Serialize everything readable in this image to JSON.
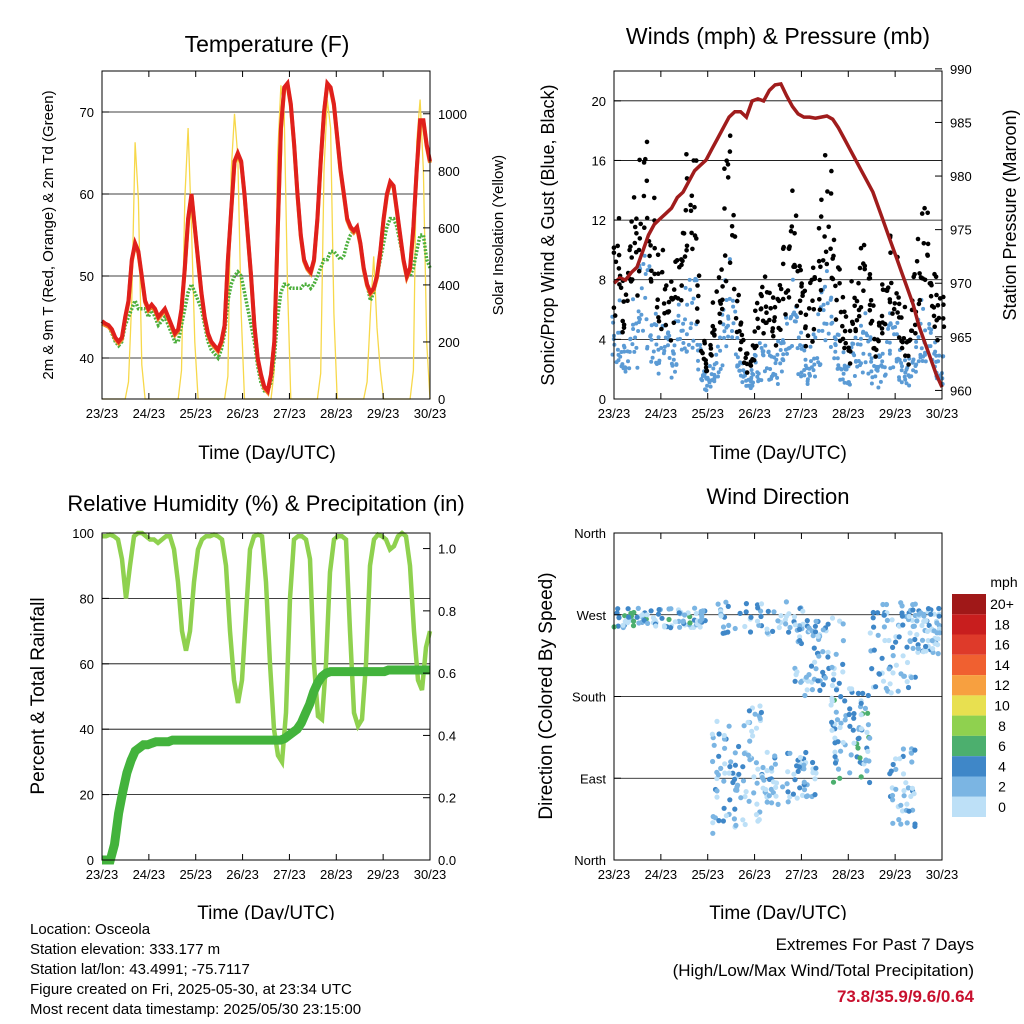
{
  "chart_data": [
    {
      "type": "line",
      "title": "Temperature (F)",
      "xlabel": "Time (Day/UTC)",
      "ylabel": "2m & 9m T (Red, Orange) & 2m Td (Green)",
      "y2label": "Solar Insolation (Yellow)",
      "x_ticks": [
        "23/23",
        "24/23",
        "25/23",
        "26/23",
        "27/23",
        "28/23",
        "29/23",
        "30/23"
      ],
      "ylim": [
        35,
        75
      ],
      "y_ticks": [
        40,
        50,
        60,
        70
      ],
      "y2lim": [
        0,
        1150
      ],
      "y2_ticks": [
        0,
        200,
        400,
        600,
        800,
        1000
      ],
      "grid": true,
      "colors": {
        "t2m": "#e0201c",
        "t9m": "#f28c28",
        "td": "#4caf3c",
        "solar": "#f7d84a"
      },
      "series": [
        {
          "values": [
            44.5,
            44.2,
            44,
            43.5,
            42.5,
            42,
            42.5,
            45,
            47,
            52,
            54,
            53,
            50,
            47,
            46,
            46.5,
            46,
            45,
            45.5,
            46,
            45,
            44,
            43,
            43.5,
            46,
            51,
            57,
            60,
            56,
            52,
            48,
            45,
            43,
            42,
            41.5,
            41,
            42,
            44,
            52,
            58,
            64,
            65,
            64,
            60,
            55,
            50,
            44,
            40,
            38,
            36.5,
            36,
            38,
            42,
            55,
            68,
            73,
            73.5,
            71,
            66,
            60,
            55,
            52,
            51,
            50.5,
            52,
            57,
            64,
            70,
            73.5,
            73,
            71,
            67,
            63,
            60,
            57,
            56,
            55.5,
            56,
            54,
            51,
            49,
            48,
            48.5,
            50,
            53,
            57,
            60,
            61.5,
            61,
            58,
            55,
            52,
            50,
            51,
            56,
            63,
            69,
            69,
            66,
            64
          ]
        },
        {
          "values": [
            44.2,
            44,
            43.8,
            43.3,
            42.3,
            41.8,
            42.3,
            44.8,
            46.8,
            51.8,
            53.8,
            52.8,
            49.8,
            46.8,
            45.8,
            46.3,
            45.8,
            44.8,
            45.3,
            45.8,
            44.8,
            43.8,
            42.8,
            43.3,
            45.8,
            50.8,
            56.8,
            59.8,
            55.8,
            51.8,
            47.8,
            44.8,
            42.8,
            41.8,
            41.3,
            40.8,
            41.8,
            43.8,
            51.8,
            57.8,
            63.8,
            64.8,
            63.8,
            59.8,
            54.8,
            49.8,
            43.8,
            39.8,
            37.8,
            36.3,
            35.8,
            37.8,
            41.8,
            54.8,
            67.8,
            72.8,
            73.3,
            70.8,
            65.8,
            59.8,
            54.8,
            51.8,
            50.8,
            50.3,
            51.8,
            56.8,
            63.8,
            69.8,
            73.3,
            72.8,
            70.8,
            66.8,
            62.8,
            59.8,
            56.8,
            55.8,
            55.3,
            55.8,
            53.8,
            50.8,
            48.8,
            47.8,
            48.3,
            49.8,
            52.8,
            56.8,
            59.8,
            61.3,
            60.8,
            57.8,
            54.8,
            51.8,
            49.8,
            50.8,
            55.8,
            62.8,
            68.8,
            68.8,
            65.8,
            63.8
          ]
        },
        {
          "values": [
            44.5,
            44,
            44,
            43,
            42,
            41.5,
            42,
            44,
            45,
            46,
            47,
            46,
            46,
            46,
            45,
            46,
            45,
            44,
            44.5,
            45,
            44,
            43,
            42,
            42,
            44,
            46,
            48,
            49,
            48,
            47,
            46,
            44,
            42,
            41,
            40.5,
            40,
            41,
            43,
            47,
            49,
            50,
            50.5,
            50,
            48,
            46,
            44,
            42,
            39,
            37,
            36,
            36,
            37,
            40,
            45,
            48,
            49,
            49,
            48.5,
            48.5,
            48.5,
            48.5,
            49,
            49,
            48.5,
            49,
            50,
            51,
            52,
            52,
            53,
            53,
            52.5,
            52,
            52.5,
            54,
            55,
            55.5,
            56,
            54,
            51,
            49,
            47,
            48,
            50,
            52,
            54,
            56,
            57,
            57,
            56,
            54,
            52,
            50,
            50,
            51,
            53,
            55,
            55,
            52,
            51
          ]
        },
        {
          "values": [
            0,
            0,
            0,
            0,
            0,
            0,
            0,
            0,
            60,
            350,
            900,
            700,
            120,
            0,
            0,
            0,
            0,
            0,
            0,
            0,
            0,
            0,
            0,
            0,
            100,
            700,
            950,
            600,
            200,
            0,
            0,
            0,
            0,
            0,
            0,
            0,
            0,
            0,
            80,
            800,
            1000,
            850,
            300,
            0,
            0,
            0,
            0,
            0,
            0,
            0,
            0,
            0,
            100,
            850,
            1100,
            1000,
            400,
            0,
            0,
            0,
            0,
            0,
            0,
            0,
            0,
            0,
            90,
            800,
            1050,
            950,
            300,
            0,
            0,
            0,
            0,
            0,
            0,
            0,
            0,
            0,
            60,
            300,
            500,
            250,
            100,
            0,
            0,
            0,
            0,
            0,
            0,
            0,
            0,
            0,
            100,
            900,
            1050,
            800,
            200,
            0
          ]
        }
      ]
    },
    {
      "type": "scatter",
      "title": "Winds (mph) & Pressure (mb)",
      "xlabel": "Time (Day/UTC)",
      "ylabel": "Sonic/Prop Wind & Gust (Blue, Black)",
      "y2label": "Station Pressure (Maroon)",
      "x_ticks": [
        "23/23",
        "24/23",
        "25/23",
        "26/23",
        "27/23",
        "28/23",
        "29/23",
        "30/23"
      ],
      "ylim": [
        0,
        22
      ],
      "y_ticks": [
        0,
        4,
        8,
        12,
        16,
        20
      ],
      "y2lim": [
        959.2,
        989.8
      ],
      "y2_ticks": [
        960,
        965,
        970,
        975,
        980,
        985,
        990
      ],
      "grid": true,
      "colors": {
        "wind": "#5b9bd5",
        "gust": "#000000",
        "pressure": "#a01c1c"
      },
      "series": [
        {
          "values": [
            4,
            4.5,
            3,
            2.5,
            3.5,
            5,
            4,
            6,
            7,
            6.5,
            5,
            4,
            3,
            3.5,
            3,
            2.5,
            3.5,
            4.5,
            5,
            6,
            6.5,
            5.5,
            3,
            1.5,
            1,
            1.5,
            2,
            3,
            4,
            5.5,
            6.5,
            5,
            3,
            2,
            1.5,
            1,
            1.5,
            2,
            2.5,
            3,
            2.5,
            2,
            2,
            3,
            4,
            5,
            5.5,
            4.5,
            3,
            2.5,
            2,
            2.5,
            3,
            4,
            5,
            6,
            5.5,
            4,
            3,
            2.5,
            2,
            1.5,
            2.5,
            3,
            3.5,
            4,
            3,
            2,
            1.5,
            2,
            3,
            3.5,
            4,
            3.5,
            2.5,
            2,
            1.5,
            2,
            3,
            4,
            5,
            4.5,
            3.5,
            3,
            2.5,
            2
          ]
        },
        {
          "values": [
            10,
            11,
            8,
            7,
            9,
            13,
            11,
            15,
            17,
            16,
            12,
            10,
            8,
            9,
            8,
            7,
            9,
            12,
            13,
            15,
            16,
            14,
            8,
            4,
            3,
            4,
            6,
            8,
            10,
            14,
            16,
            12,
            8,
            6,
            4,
            3,
            4,
            6,
            7,
            8,
            7,
            6,
            6,
            8,
            10,
            12,
            13,
            11,
            8,
            7,
            6,
            7,
            8,
            10,
            12,
            15,
            14,
            10,
            8,
            7,
            6,
            4,
            7,
            8,
            9,
            10,
            8,
            6,
            4,
            6,
            8,
            9,
            10,
            9,
            7,
            6,
            4,
            6,
            8,
            10,
            12,
            11,
            9,
            8,
            7,
            6
          ]
        },
        {
          "values": [
            970,
            970.5,
            970.3,
            971,
            971.5,
            973,
            974.5,
            975.5,
            976,
            976.5,
            977,
            978,
            978.5,
            979.5,
            980.5,
            981,
            981.5,
            982.5,
            983.5,
            984.5,
            985.5,
            986,
            986,
            985.5,
            987,
            987.2,
            987,
            988,
            988.5,
            988.6,
            987.5,
            986.5,
            985.8,
            985.5,
            985.5,
            985.4,
            985.5,
            985.6,
            985.3,
            984.5,
            983.5,
            982.5,
            981.5,
            980.5,
            979.5,
            978.5,
            977,
            975.5,
            974,
            972.5,
            971,
            969.5,
            968,
            966,
            964.5,
            963,
            961.5,
            960.3
          ]
        }
      ]
    },
    {
      "type": "line",
      "title": "Relative Humidity (%) & Precipitation (in)",
      "xlabel": "Time (Day/UTC)",
      "ylabel": "Percent & Total Rainfall",
      "x_ticks": [
        "23/23",
        "24/23",
        "25/23",
        "26/23",
        "27/23",
        "28/23",
        "29/23",
        "30/23"
      ],
      "ylim": [
        0,
        100
      ],
      "y_ticks": [
        0,
        20,
        40,
        60,
        80,
        100
      ],
      "y2lim": [
        0,
        1.0
      ],
      "y2_ticks": [
        "0.0",
        "0.2",
        "0.4",
        "0.6",
        "0.8",
        "1.0"
      ],
      "grid": true,
      "colors": {
        "rh": "#8fd14f",
        "precip": "#43b33c"
      },
      "series": [
        {
          "values": [
            99,
            99,
            99.5,
            99,
            98,
            92,
            80,
            90,
            99,
            100,
            100,
            99,
            98,
            98,
            97,
            98,
            99,
            99,
            95,
            85,
            70,
            64,
            70,
            85,
            95,
            98,
            99,
            99,
            99.5,
            99,
            98,
            90,
            70,
            55,
            48,
            55,
            75,
            95,
            99,
            99.5,
            99,
            85,
            60,
            40,
            32,
            30,
            45,
            80,
            98,
            99,
            99,
            98,
            92,
            60,
            44,
            43,
            60,
            88,
            98,
            99,
            99,
            98,
            70,
            45,
            41,
            43,
            60,
            90,
            98,
            99.5,
            99,
            98,
            95,
            96,
            99,
            100,
            99,
            90,
            70,
            55,
            52,
            65,
            70
          ]
        },
        {
          "values": [
            0,
            0,
            0,
            0.05,
            0.15,
            0.22,
            0.28,
            0.32,
            0.35,
            0.36,
            0.37,
            0.37,
            0.375,
            0.38,
            0.38,
            0.38,
            0.38,
            0.385,
            0.385,
            0.385,
            0.385,
            0.385,
            0.385,
            0.385,
            0.385,
            0.385,
            0.385,
            0.385,
            0.385,
            0.385,
            0.385,
            0.385,
            0.385,
            0.385,
            0.385,
            0.385,
            0.385,
            0.385,
            0.385,
            0.385,
            0.385,
            0.385,
            0.385,
            0.385,
            0.39,
            0.4,
            0.41,
            0.42,
            0.44,
            0.47,
            0.5,
            0.54,
            0.57,
            0.59,
            0.6,
            0.605,
            0.605,
            0.605,
            0.605,
            0.605,
            0.605,
            0.605,
            0.605,
            0.605,
            0.605,
            0.605,
            0.605,
            0.605,
            0.605,
            0.61,
            0.61,
            0.61,
            0.61,
            0.61,
            0.61,
            0.61,
            0.61,
            0.61,
            0.61,
            0.61
          ]
        }
      ]
    },
    {
      "type": "scatter",
      "title": "Wind Direction",
      "xlabel": "Time (Day/UTC)",
      "ylabel": "Direction (Colored By Speed)",
      "x_ticks": [
        "23/23",
        "24/23",
        "25/23",
        "26/23",
        "27/23",
        "28/23",
        "29/23",
        "30/23"
      ],
      "y_ticks": [
        "North",
        "West",
        "South",
        "East",
        "North"
      ],
      "grid": true,
      "colorbar": {
        "unit": "mph",
        "labels": [
          "20+",
          "18",
          "16",
          "14",
          "12",
          "10",
          "8",
          "6",
          "4",
          "2",
          "0"
        ],
        "colors": [
          "#a01818",
          "#c81e1e",
          "#de3a2a",
          "#f06030",
          "#f7a040",
          "#e8e050",
          "#8fd14f",
          "#4caf6e",
          "#3f87c8",
          "#7bb5e3",
          "#bde0f7"
        ]
      }
    }
  ],
  "info": {
    "location": "Location: Osceola",
    "elevation": "Station elevation: 333.177 m",
    "latlon": "Station lat/lon: 43.4991; -75.7117",
    "created": "Figure created on Fri, 2025-05-30, at 23:34 UTC",
    "recent": "Most recent data timestamp: 2025/05/30 23:15:00"
  },
  "extremes": {
    "title": "Extremes For Past 7 Days",
    "subtitle": "(High/Low/Max Wind/Total Precipitation)",
    "values": "73.8/35.9/9.6/0.64"
  }
}
